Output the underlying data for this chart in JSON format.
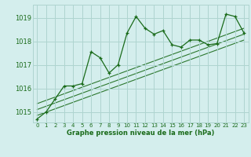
{
  "title": "Graphe pression niveau de la mer (hPa)",
  "bg_color": "#d4eeed",
  "grid_color": "#aed4d0",
  "line_color": "#1a6b1a",
  "marker_color": "#1a6b1a",
  "xlim": [
    -0.5,
    23.5
  ],
  "ylim": [
    1014.55,
    1019.55
  ],
  "yticks": [
    1015,
    1016,
    1017,
    1018,
    1019
  ],
  "xticks": [
    0,
    1,
    2,
    3,
    4,
    5,
    6,
    7,
    8,
    9,
    10,
    11,
    12,
    13,
    14,
    15,
    16,
    17,
    18,
    19,
    20,
    21,
    22,
    23
  ],
  "main_line_x": [
    0,
    1,
    2,
    3,
    4,
    5,
    6,
    7,
    8,
    9,
    10,
    11,
    12,
    13,
    14,
    15,
    16,
    17,
    18,
    19,
    20,
    21,
    22,
    23
  ],
  "main_line_y": [
    1014.7,
    1015.0,
    1015.55,
    1016.1,
    1016.1,
    1016.2,
    1017.55,
    1017.3,
    1016.65,
    1017.0,
    1018.35,
    1019.05,
    1018.55,
    1018.3,
    1018.45,
    1017.85,
    1017.75,
    1018.05,
    1018.05,
    1017.85,
    1017.9,
    1019.15,
    1019.05,
    1018.35
  ],
  "regression_lines": [
    {
      "x": [
        0,
        23
      ],
      "y": [
        1015.1,
        1018.3
      ]
    },
    {
      "x": [
        0,
        23
      ],
      "y": [
        1014.85,
        1018.05
      ]
    },
    {
      "x": [
        0,
        23
      ],
      "y": [
        1015.35,
        1018.55
      ]
    }
  ],
  "xlabel_fontsize": 6.0,
  "ytick_fontsize": 6.0,
  "xtick_fontsize": 5.0
}
